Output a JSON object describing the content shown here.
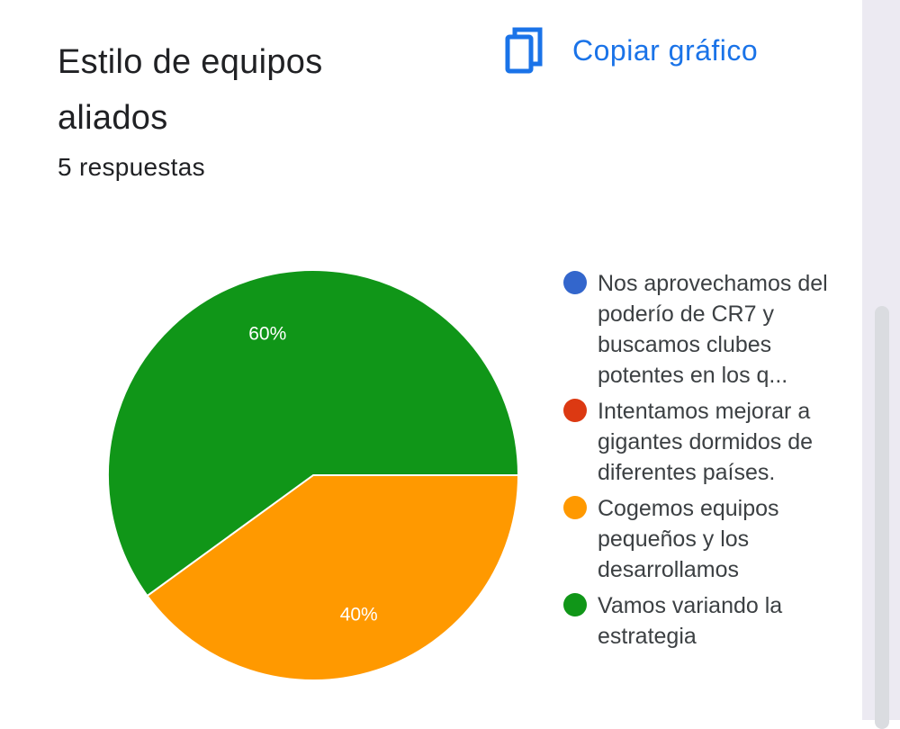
{
  "card": {
    "title": "Estilo de equipos aliados",
    "responses": "5 respuestas",
    "copy_button": {
      "label": "Copiar gráfico",
      "icon": "copy-icon",
      "color": "#1a73e8"
    }
  },
  "chart_data": {
    "type": "pie",
    "title": "",
    "legend_position": "right",
    "slices": [
      {
        "label": "Nos aprovechamos del poderío de CR7 y buscamos clubes potentes en los q...",
        "value": 0,
        "color": "#3366cc",
        "display": ""
      },
      {
        "label": "Intentamos mejorar a gigantes dormidos de diferentes países.",
        "value": 0,
        "color": "#dc3912",
        "display": ""
      },
      {
        "label": "Cogemos equipos pequeños y los desarrollamos",
        "value": 40,
        "color": "#ff9900",
        "display": "40%"
      },
      {
        "label": "Vamos variando la estrategia",
        "value": 60,
        "color": "#109618",
        "display": "60%"
      }
    ]
  }
}
